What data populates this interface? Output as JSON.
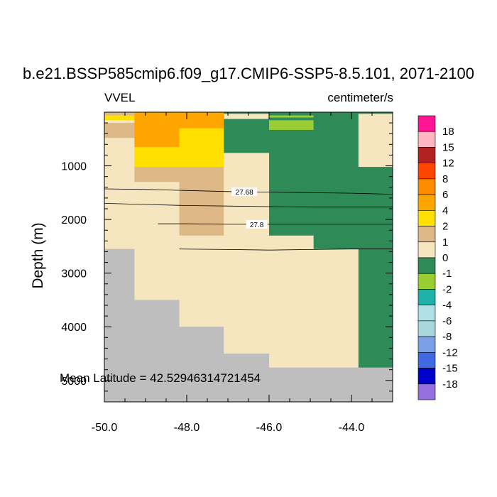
{
  "chart_data": {
    "type": "heatmap",
    "title": "b.e21.BSSP585cmip6.f09_g17.CMIP6-SSP5-8.5.101, 2071-2100",
    "left_subtitle": "VVEL",
    "right_subtitle": "centimeter/s",
    "xlabel": "",
    "ylabel": "Depth (m)",
    "xlim": [
      -50.0,
      -43.0
    ],
    "ylim": [
      0,
      5400
    ],
    "y_reversed": true,
    "x_ticks": [
      -50.0,
      -48.0,
      -46.0,
      -44.0
    ],
    "x_tick_labels": [
      "-50.0",
      "-48.0",
      "-46.0",
      "-44.0"
    ],
    "y_ticks": [
      1000,
      2000,
      3000,
      4000,
      5000
    ],
    "y_tick_labels": [
      "1000",
      "2000",
      "3000",
      "4000",
      "5000"
    ],
    "annotation": "Mean Latitude = 42.52946314721454",
    "colorbar": {
      "labels": [
        "18",
        "15",
        "12",
        "8",
        "6",
        "4",
        "2",
        "1",
        "0",
        "-1",
        "-2",
        "-4",
        "-6",
        "-8",
        "-12",
        "-15",
        "-18"
      ],
      "colors": [
        "#ff1493",
        "#ffb6c1",
        "#b22222",
        "#ff4500",
        "#ff8c00",
        "#ffa500",
        "#ffe000",
        "#deb887",
        "#f5e6c0",
        "#2e8b57",
        "#9acd32",
        "#20b2aa",
        "#b0e0e6",
        "#a9d8dc",
        "#7ba0e8",
        "#4169e1",
        "#0000cd",
        "#9370db"
      ]
    },
    "missing_color": "#bebebe",
    "cells": [
      {
        "x0": -50.0,
        "x1": -49.27,
        "y0": 0,
        "y1": 60,
        "color": "#deb887"
      },
      {
        "x0": -50.0,
        "x1": -49.27,
        "y0": 60,
        "y1": 150,
        "color": "#ffe000"
      },
      {
        "x0": -50.0,
        "x1": -49.27,
        "y0": 150,
        "y1": 200,
        "color": "#f5e6c0"
      },
      {
        "x0": -50.0,
        "x1": -49.27,
        "y0": 200,
        "y1": 480,
        "color": "#deb887"
      },
      {
        "x0": -50.0,
        "x1": -49.27,
        "y0": 480,
        "y1": 2550,
        "color": "#f5e6c0"
      },
      {
        "x0": -50.0,
        "x1": -49.27,
        "y0": 2550,
        "y1": 5400,
        "color": "#bebebe"
      },
      {
        "x0": -49.27,
        "x1": -48.18,
        "y0": 0,
        "y1": 650,
        "color": "#ffa500"
      },
      {
        "x0": -49.27,
        "x1": -48.18,
        "y0": 650,
        "y1": 1020,
        "color": "#ffe000"
      },
      {
        "x0": -49.27,
        "x1": -48.18,
        "y0": 1020,
        "y1": 1300,
        "color": "#deb887"
      },
      {
        "x0": -49.27,
        "x1": -48.18,
        "y0": 1300,
        "y1": 3500,
        "color": "#f5e6c0"
      },
      {
        "x0": -49.27,
        "x1": -48.18,
        "y0": 3500,
        "y1": 5400,
        "color": "#bebebe"
      },
      {
        "x0": -48.18,
        "x1": -47.1,
        "y0": 0,
        "y1": 300,
        "color": "#ffa500"
      },
      {
        "x0": -48.18,
        "x1": -47.1,
        "y0": 300,
        "y1": 1020,
        "color": "#ffe000"
      },
      {
        "x0": -48.18,
        "x1": -47.1,
        "y0": 1020,
        "y1": 2300,
        "color": "#deb887"
      },
      {
        "x0": -48.18,
        "x1": -47.1,
        "y0": 2300,
        "y1": 4000,
        "color": "#f5e6c0"
      },
      {
        "x0": -48.18,
        "x1": -47.1,
        "y0": 4000,
        "y1": 5400,
        "color": "#bebebe"
      },
      {
        "x0": -47.1,
        "x1": -46.0,
        "y0": 0,
        "y1": 120,
        "color": "#2e8b57"
      },
      {
        "x0": -47.1,
        "x1": -46.0,
        "y0": 120,
        "y1": 760,
        "color": "#2e8b57"
      },
      {
        "x0": -47.1,
        "x1": -46.0,
        "y0": 760,
        "y1": 4500,
        "color": "#f5e6c0"
      },
      {
        "x0": -47.1,
        "x1": -46.0,
        "y0": 4500,
        "y1": 5400,
        "color": "#bebebe"
      },
      {
        "x0": -46.0,
        "x1": -44.92,
        "y0": 0,
        "y1": 60,
        "color": "#2e8b57"
      },
      {
        "x0": -46.0,
        "x1": -44.92,
        "y0": 60,
        "y1": 100,
        "color": "#9acd32"
      },
      {
        "x0": -46.0,
        "x1": -44.92,
        "y0": 100,
        "y1": 150,
        "color": "#2e8b57"
      },
      {
        "x0": -46.0,
        "x1": -44.92,
        "y0": 150,
        "y1": 330,
        "color": "#9acd32"
      },
      {
        "x0": -46.0,
        "x1": -44.92,
        "y0": 330,
        "y1": 2300,
        "color": "#2e8b57"
      },
      {
        "x0": -46.0,
        "x1": -44.92,
        "y0": 2300,
        "y1": 4760,
        "color": "#f5e6c0"
      },
      {
        "x0": -46.0,
        "x1": -44.92,
        "y0": 4760,
        "y1": 5400,
        "color": "#bebebe"
      },
      {
        "x0": -44.92,
        "x1": -43.83,
        "y0": 0,
        "y1": 2550,
        "color": "#2e8b57"
      },
      {
        "x0": -44.92,
        "x1": -43.83,
        "y0": 2550,
        "y1": 4760,
        "color": "#f5e6c0"
      },
      {
        "x0": -44.92,
        "x1": -43.83,
        "y0": 4760,
        "y1": 5400,
        "color": "#bebebe"
      },
      {
        "x0": -43.83,
        "x1": -43.0,
        "y0": 0,
        "y1": 30,
        "color": "#2e8b57"
      },
      {
        "x0": -43.83,
        "x1": -43.0,
        "y0": 30,
        "y1": 1020,
        "color": "#f5e6c0"
      },
      {
        "x0": -43.83,
        "x1": -43.0,
        "y0": 1020,
        "y1": 4760,
        "color": "#2e8b57"
      },
      {
        "x0": -43.83,
        "x1": -43.0,
        "y0": 4760,
        "y1": 5400,
        "color": "#bebebe"
      },
      {
        "x0": -47.1,
        "x1": -46.0,
        "y0": 30,
        "y1": 120,
        "color": "#f5e6c0"
      }
    ],
    "contours": [
      {
        "label": "27.68",
        "label_x": -46.6,
        "points": [
          [
            -50.0,
            1430
          ],
          [
            -49.0,
            1440
          ],
          [
            -48.0,
            1460
          ],
          [
            -47.0,
            1480
          ],
          [
            -46.0,
            1490
          ],
          [
            -45.0,
            1500
          ],
          [
            -44.0,
            1510
          ],
          [
            -43.0,
            1530
          ]
        ]
      },
      {
        "label": "",
        "label_x": null,
        "points": [
          [
            -50.0,
            1700
          ],
          [
            -49.0,
            1720
          ],
          [
            -48.0,
            1740
          ],
          [
            -47.0,
            1750
          ],
          [
            -46.0,
            1760
          ],
          [
            -45.0,
            1770
          ],
          [
            -44.0,
            1770
          ],
          [
            -43.0,
            1770
          ]
        ]
      },
      {
        "label": "27.8",
        "label_x": -46.3,
        "points": [
          [
            -48.7,
            2080
          ],
          [
            -48.0,
            2080
          ],
          [
            -47.0,
            2090
          ],
          [
            -46.0,
            2090
          ],
          [
            -45.0,
            2090
          ],
          [
            -44.0,
            2090
          ],
          [
            -43.0,
            2090
          ]
        ]
      },
      {
        "label": "",
        "label_x": null,
        "points": [
          [
            -48.18,
            2550
          ],
          [
            -47.0,
            2560
          ],
          [
            -46.0,
            2570
          ],
          [
            -45.0,
            2560
          ],
          [
            -44.0,
            2550
          ],
          [
            -43.0,
            2550
          ]
        ]
      }
    ]
  }
}
